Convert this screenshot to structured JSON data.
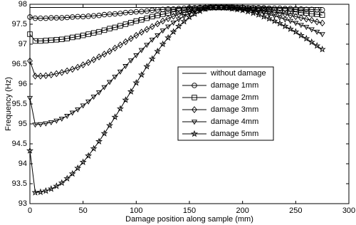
{
  "chart_data": {
    "type": "line",
    "xlabel": "Damage position along sample (mm)",
    "ylabel": "Frequency (Hz)",
    "x": [
      0,
      5,
      10,
      15,
      20,
      25,
      30,
      35,
      40,
      45,
      50,
      55,
      60,
      65,
      70,
      75,
      80,
      85,
      90,
      95,
      100,
      105,
      110,
      115,
      120,
      125,
      130,
      135,
      140,
      145,
      150,
      155,
      160,
      165,
      170,
      175,
      180,
      185,
      190,
      195,
      200,
      205,
      210,
      215,
      220,
      225,
      230,
      235,
      240,
      245,
      250,
      255,
      260,
      265,
      270,
      275
    ],
    "series": [
      {
        "name": "without damage",
        "color": "#000000",
        "marker": "none",
        "values": [
          97.92,
          97.92,
          97.92,
          97.92,
          97.92,
          97.92,
          97.92,
          97.92,
          97.92,
          97.92,
          97.92,
          97.92,
          97.92,
          97.92,
          97.92,
          97.92,
          97.92,
          97.92,
          97.92,
          97.92,
          97.92,
          97.92,
          97.92,
          97.92,
          97.92,
          97.92,
          97.92,
          97.92,
          97.92,
          97.92,
          97.92,
          97.92,
          97.92,
          97.92,
          97.92,
          97.92,
          97.92,
          97.92,
          97.92,
          97.92,
          97.92,
          97.92,
          97.92,
          97.92,
          97.92,
          97.92,
          97.92,
          97.92,
          97.92,
          97.92,
          97.92,
          97.92,
          97.92,
          97.92,
          97.92,
          97.92
        ]
      },
      {
        "name": "damage 1mm",
        "color": "#000000",
        "marker": "circle",
        "values": [
          97.68,
          97.65,
          97.65,
          97.65,
          97.66,
          97.66,
          97.66,
          97.67,
          97.68,
          97.69,
          97.69,
          97.7,
          97.71,
          97.72,
          97.74,
          97.75,
          97.76,
          97.77,
          97.79,
          97.8,
          97.81,
          97.82,
          97.83,
          97.85,
          97.86,
          97.87,
          97.88,
          97.88,
          97.89,
          97.9,
          97.91,
          97.91,
          97.92,
          97.92,
          97.92,
          97.92,
          97.92,
          97.92,
          97.92,
          97.92,
          97.92,
          97.91,
          97.91,
          97.91,
          97.91,
          97.9,
          97.9,
          97.9,
          97.89,
          97.89,
          97.88,
          97.88,
          97.87,
          97.87,
          97.86,
          97.86
        ]
      },
      {
        "name": "damage 2mm",
        "color": "#000000",
        "marker": "square",
        "values": [
          97.25,
          97.08,
          97.08,
          97.09,
          97.1,
          97.11,
          97.12,
          97.14,
          97.17,
          97.19,
          97.22,
          97.25,
          97.28,
          97.31,
          97.35,
          97.39,
          97.42,
          97.46,
          97.5,
          97.54,
          97.58,
          97.61,
          97.65,
          97.69,
          97.72,
          97.75,
          97.78,
          97.81,
          97.84,
          97.86,
          97.88,
          97.89,
          97.9,
          97.91,
          97.92,
          97.92,
          97.92,
          97.92,
          97.92,
          97.91,
          97.91,
          97.9,
          97.9,
          97.89,
          97.88,
          97.87,
          97.86,
          97.85,
          97.84,
          97.82,
          97.81,
          97.79,
          97.78,
          97.76,
          97.75,
          97.73
        ]
      },
      {
        "name": "damage 3mm",
        "color": "#000000",
        "marker": "diamond",
        "values": [
          96.58,
          96.2,
          96.2,
          96.21,
          96.23,
          96.26,
          96.29,
          96.33,
          96.37,
          96.42,
          96.48,
          96.54,
          96.61,
          96.68,
          96.75,
          96.82,
          96.9,
          96.98,
          97.06,
          97.14,
          97.22,
          97.3,
          97.37,
          97.44,
          97.51,
          97.58,
          97.64,
          97.7,
          97.75,
          97.79,
          97.83,
          97.86,
          97.89,
          97.91,
          97.92,
          97.92,
          97.92,
          97.92,
          97.91,
          97.9,
          97.89,
          97.88,
          97.87,
          97.85,
          97.84,
          97.82,
          97.8,
          97.77,
          97.75,
          97.72,
          97.69,
          97.66,
          97.63,
          97.6,
          97.56,
          97.53
        ]
      },
      {
        "name": "damage 4mm",
        "color": "#000000",
        "marker": "triangle-down",
        "values": [
          95.65,
          94.98,
          94.99,
          95.01,
          95.04,
          95.08,
          95.13,
          95.2,
          95.28,
          95.36,
          95.46,
          95.56,
          95.68,
          95.79,
          95.92,
          96.05,
          96.18,
          96.31,
          96.45,
          96.59,
          96.72,
          96.85,
          96.98,
          97.11,
          97.22,
          97.34,
          97.44,
          97.54,
          97.62,
          97.7,
          97.77,
          97.82,
          97.86,
          97.89,
          97.91,
          97.92,
          97.92,
          97.91,
          97.9,
          97.89,
          97.87,
          97.85,
          97.83,
          97.81,
          97.78,
          97.74,
          97.71,
          97.67,
          97.62,
          97.58,
          97.53,
          97.48,
          97.43,
          97.37,
          97.31,
          97.25
        ]
      },
      {
        "name": "damage 5mm",
        "color": "#000000",
        "marker": "star",
        "values": [
          94.33,
          93.28,
          93.29,
          93.32,
          93.37,
          93.44,
          93.52,
          93.63,
          93.75,
          93.89,
          94.04,
          94.2,
          94.38,
          94.56,
          94.76,
          94.96,
          95.17,
          95.38,
          95.6,
          95.81,
          96.03,
          96.23,
          96.44,
          96.63,
          96.82,
          97.0,
          97.16,
          97.31,
          97.45,
          97.57,
          97.68,
          97.76,
          97.83,
          97.88,
          97.91,
          97.92,
          97.92,
          97.91,
          97.89,
          97.87,
          97.85,
          97.82,
          97.78,
          97.74,
          97.69,
          97.64,
          97.58,
          97.52,
          97.45,
          97.38,
          97.31,
          97.22,
          97.14,
          97.05,
          96.96,
          96.87
        ]
      }
    ],
    "xlim": [
      0,
      300
    ],
    "xticks": [
      0,
      50,
      100,
      150,
      200,
      250,
      300
    ],
    "ylim": [
      93,
      98
    ],
    "yticks": [
      93,
      93.5,
      94,
      94.5,
      95,
      95.5,
      96,
      96.5,
      97,
      97.5,
      98
    ],
    "grid": false
  }
}
